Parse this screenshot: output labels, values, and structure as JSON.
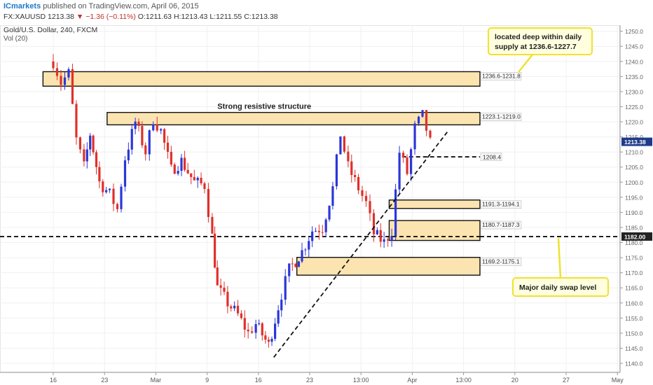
{
  "header": {
    "publisher": "ICmarkets",
    "published_text": "published on TradingView.com, April 06, 2015",
    "symbol": "FX:XAUUSD",
    "last": "1213.38",
    "change": "▼ −1.36 (−0.11%)",
    "open": "O:1211.63",
    "high": "H:1213.43",
    "low": "L:1211.55",
    "close": "C:1213.38",
    "instrument": "Gold/U.S. Dollar, 240, FXCM",
    "volume": "Vol (20)"
  },
  "colors": {
    "up": "#2b36d9",
    "down": "#e0302a",
    "zone_fill": "#fbe4b0",
    "zone_stroke": "#111111",
    "callout_fill": "#ffffe0",
    "callout_stroke": "#f0e130",
    "price_badge": "#1e3a8a"
  },
  "chart_data": {
    "type": "candlestick",
    "title": "Gold/U.S. Dollar, 240, FXCM",
    "ylim": [
      1137,
      1252
    ],
    "y_ticks": [
      1140,
      1145,
      1150,
      1155,
      1160,
      1165,
      1170,
      1175,
      1180,
      1185,
      1190,
      1195,
      1200,
      1205,
      1210,
      1215,
      1220,
      1225,
      1230,
      1235,
      1240,
      1245,
      1250
    ],
    "x_ticks": [
      "16",
      "23",
      "Mar",
      "9",
      "16",
      "23",
      "13:00",
      "Apr",
      "13:00",
      "20",
      "27",
      "May"
    ],
    "x_tick_positions": [
      0,
      1,
      2,
      3,
      4,
      5,
      6,
      7,
      8,
      9,
      10,
      11
    ],
    "last_price": "1213.38",
    "path": [
      [
        0,
        1240
      ],
      [
        0.15,
        1233
      ],
      [
        0.3,
        1236
      ],
      [
        0.45,
        1214
      ],
      [
        0.6,
        1205
      ],
      [
        0.72,
        1216
      ],
      [
        0.9,
        1200
      ],
      [
        1.1,
        1196
      ],
      [
        1.25,
        1191
      ],
      [
        1.4,
        1208
      ],
      [
        1.6,
        1220
      ],
      [
        1.8,
        1210
      ],
      [
        1.95,
        1221
      ],
      [
        2.1,
        1217
      ],
      [
        2.3,
        1204
      ],
      [
        2.5,
        1207
      ],
      [
        2.75,
        1200
      ],
      [
        2.95,
        1199
      ],
      [
        3.1,
        1182
      ],
      [
        3.2,
        1165
      ],
      [
        3.4,
        1160
      ],
      [
        3.6,
        1156
      ],
      [
        3.8,
        1150
      ],
      [
        3.95,
        1153
      ],
      [
        4.2,
        1146
      ],
      [
        4.45,
        1163
      ],
      [
        4.6,
        1171
      ],
      [
        4.85,
        1177
      ],
      [
        5.05,
        1184
      ],
      [
        5.25,
        1185
      ],
      [
        5.45,
        1198
      ],
      [
        5.6,
        1216
      ],
      [
        5.75,
        1205
      ],
      [
        5.95,
        1198
      ],
      [
        6.1,
        1193
      ],
      [
        6.25,
        1183
      ],
      [
        6.45,
        1180
      ],
      [
        6.6,
        1184
      ],
      [
        6.75,
        1210
      ],
      [
        6.9,
        1203
      ],
      [
        7.05,
        1218
      ],
      [
        7.2,
        1222
      ],
      [
        7.35,
        1213
      ]
    ],
    "zones": [
      {
        "label": "1236.6-1231.8",
        "x0": -0.2,
        "top": 1236.6,
        "bottom": 1231.8
      },
      {
        "label": "1223.1-1219.0",
        "x0": 1.05,
        "top": 1223.1,
        "bottom": 1219.0
      },
      {
        "label": "1191.3-1194.1",
        "x0": 6.55,
        "top": 1194.1,
        "bottom": 1191.3
      },
      {
        "label": "1180.7-1187.3",
        "x0": 6.55,
        "top": 1187.3,
        "bottom": 1180.7
      },
      {
        "label": "1169.2-1175.1",
        "x0": 4.75,
        "top": 1175.1,
        "bottom": 1169.2
      }
    ],
    "levels": [
      {
        "value": 1208.4,
        "label": "1208.4",
        "x0": 6.8
      },
      {
        "value": 1182.0,
        "label": "1182.00",
        "x0": -1
      }
    ],
    "trendline": [
      [
        4.3,
        1142
      ],
      [
        7.7,
        1217
      ]
    ],
    "annotations": [
      {
        "text": "Strong resistive structure",
        "x": 3.2,
        "y": 1225
      },
      {
        "text": "located deep within daily supply at 1236.6-1227.7"
      },
      {
        "text": "Major daily swap level"
      }
    ]
  }
}
